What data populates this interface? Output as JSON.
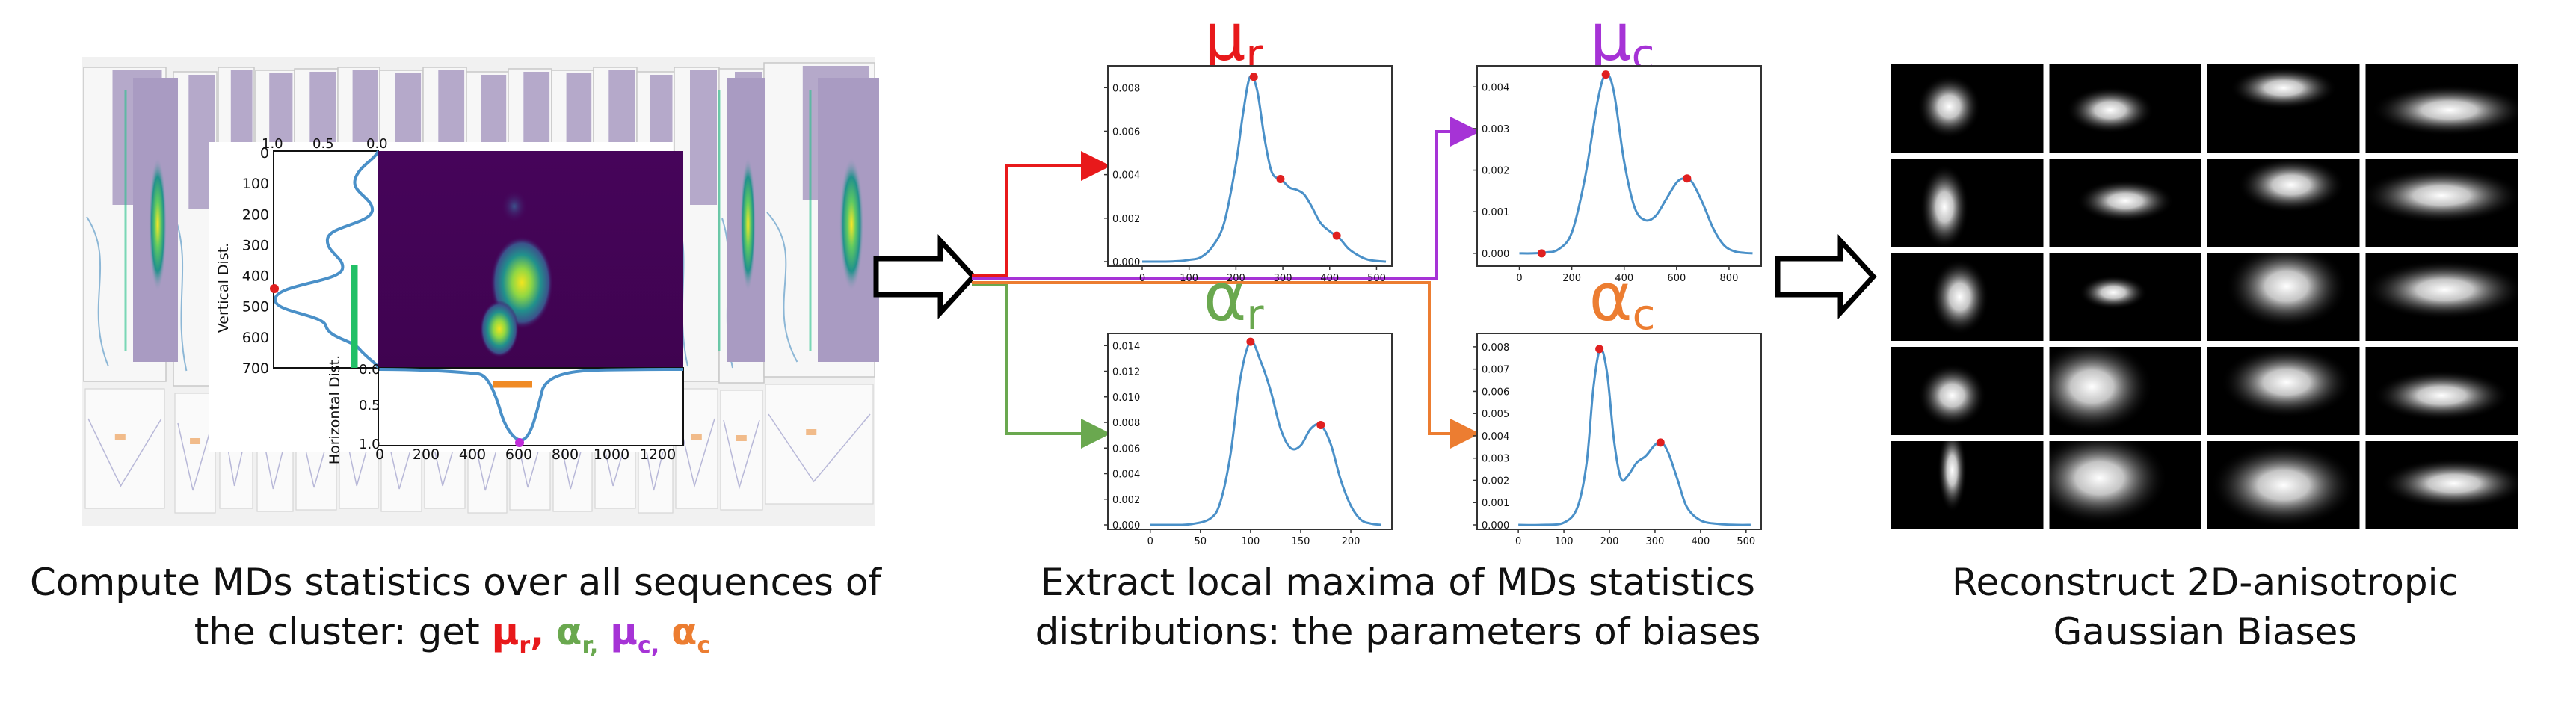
{
  "colors": {
    "mu_r": "#e8191b",
    "alpha_r": "#6aa84f",
    "mu_c": "#a633d6",
    "alpha_c": "#ec7d31",
    "curve": "#4a90c8",
    "heatmap_bg": "#440154",
    "line_green": "#21c066",
    "line_orange": "#f08a24",
    "dot_red": "#e02020",
    "dot_purple": "#c02bd8"
  },
  "panel1": {
    "top_axis_ticks": [
      "1.0",
      "0.5",
      "0.0"
    ],
    "left_axis_label": "Vertical Dist.",
    "left_axis_ticks": [
      "0",
      "100",
      "200",
      "300",
      "400",
      "500",
      "600",
      "700"
    ],
    "bottom_axis_label": "Horizontal Dist.",
    "bottom_left_ticks": [
      "0.0",
      "0.5",
      "1.0"
    ],
    "bottom_axis_ticks": [
      "0",
      "200",
      "400",
      "600",
      "800",
      "1000",
      "1200"
    ]
  },
  "panel2": {
    "plots": [
      {
        "id": "mu_r",
        "symbol": "μ",
        "sub": "r",
        "chart_data": {
          "type": "line",
          "x_ticks": [
            "0",
            "100",
            "200",
            "300",
            "400",
            "500"
          ],
          "y_ticks": [
            "0.000",
            "0.002",
            "0.004",
            "0.006",
            "0.008"
          ],
          "xlim": [
            0,
            520
          ],
          "ylim": [
            0,
            0.0088
          ],
          "x": [
            0,
            25,
            50,
            75,
            100,
            125,
            150,
            175,
            200,
            215,
            230,
            245,
            260,
            275,
            290,
            300,
            315,
            330,
            345,
            360,
            380,
            400,
            420,
            440,
            460,
            480,
            500,
            520
          ],
          "y": [
            0,
            0,
            0,
            2e-05,
            8e-05,
            0.0002,
            0.0007,
            0.0018,
            0.0045,
            0.0068,
            0.0085,
            0.0079,
            0.0058,
            0.0042,
            0.0038,
            0.0037,
            0.0034,
            0.0033,
            0.0031,
            0.0026,
            0.0018,
            0.0014,
            0.0011,
            0.0006,
            0.0003,
            0.0001,
            3e-05,
            0
          ],
          "maxima": [
            [
              238,
              0.0085
            ],
            [
              295,
              0.0038
            ],
            [
              415,
              0.0012
            ]
          ]
        }
      },
      {
        "id": "mu_c",
        "symbol": "μ",
        "sub": "c",
        "chart_data": {
          "type": "line",
          "x_ticks": [
            "0",
            "200",
            "400",
            "600",
            "800"
          ],
          "y_ticks": [
            "0.000",
            "0.001",
            "0.002",
            "0.003",
            "0.004"
          ],
          "xlim": [
            -30,
            900
          ],
          "ylim": [
            -0.0002,
            0.0044
          ],
          "x": [
            0,
            50,
            100,
            150,
            200,
            250,
            300,
            330,
            360,
            400,
            440,
            480,
            520,
            560,
            600,
            630,
            660,
            700,
            740,
            780,
            820,
            860,
            890
          ],
          "y": [
            0,
            0,
            2e-05,
            0.0001,
            0.0005,
            0.0018,
            0.0037,
            0.0043,
            0.0039,
            0.0022,
            0.0011,
            0.0008,
            0.0009,
            0.0013,
            0.0017,
            0.0018,
            0.0017,
            0.0012,
            0.0006,
            0.0002,
            5e-05,
            1e-05,
            0
          ],
          "maxima": [
            [
              330,
              0.0043
            ],
            [
              640,
              0.0018
            ],
            [
              85,
              0.0
            ]
          ]
        }
      },
      {
        "id": "alpha_r",
        "symbol": "α",
        "sub": "r",
        "chart_data": {
          "type": "line",
          "x_ticks": [
            "0",
            "50",
            "100",
            "150",
            "200"
          ],
          "y_ticks": [
            "0.000",
            "0.002",
            "0.004",
            "0.006",
            "0.008",
            "0.010",
            "0.012",
            "0.014"
          ],
          "xlim": [
            -8,
            235
          ],
          "ylim": [
            0,
            0.0146
          ],
          "x": [
            0,
            20,
            40,
            60,
            70,
            80,
            90,
            100,
            110,
            120,
            130,
            140,
            150,
            160,
            170,
            180,
            190,
            200,
            210,
            220,
            230
          ],
          "y": [
            0,
            0,
            5e-05,
            0.0005,
            0.0018,
            0.0055,
            0.0115,
            0.0143,
            0.0128,
            0.0105,
            0.0075,
            0.006,
            0.0062,
            0.0075,
            0.0078,
            0.0063,
            0.0035,
            0.0015,
            0.0004,
            0.0001,
            0
          ],
          "maxima": [
            [
              100,
              0.0143
            ],
            [
              170,
              0.0078
            ]
          ]
        }
      },
      {
        "id": "alpha_c",
        "symbol": "α",
        "sub": "c",
        "chart_data": {
          "type": "line",
          "x_ticks": [
            "0",
            "100",
            "200",
            "300",
            "400",
            "500"
          ],
          "y_ticks": [
            "0.000",
            "0.001",
            "0.002",
            "0.003",
            "0.004",
            "0.005",
            "0.006",
            "0.007",
            "0.008"
          ],
          "xlim": [
            -15,
            520
          ],
          "ylim": [
            0,
            0.0084
          ],
          "x": [
            0,
            50,
            100,
            130,
            150,
            165,
            180,
            195,
            210,
            225,
            240,
            260,
            280,
            300,
            315,
            330,
            350,
            370,
            400,
            440,
            480,
            510
          ],
          "y": [
            0,
            0,
            0.0001,
            0.0008,
            0.0028,
            0.0062,
            0.0079,
            0.0068,
            0.0038,
            0.0021,
            0.0022,
            0.0028,
            0.0031,
            0.0036,
            0.0037,
            0.0032,
            0.002,
            0.0008,
            0.0002,
            4e-05,
            0,
            0
          ],
          "maxima": [
            [
              178,
              0.0079
            ],
            [
              312,
              0.0037
            ]
          ]
        }
      }
    ]
  },
  "captions": {
    "left": {
      "line1": "Compute MDs statistics over all sequences of",
      "line2_prefix": "the cluster: get ",
      "mu_r": "μ",
      "mu_r_sub": "r",
      "alpha_r": "α",
      "alpha_r_sub": "r,",
      "mu_c": "μ",
      "mu_c_sub": "c,",
      "alpha_c": "α",
      "alpha_c_sub": "c",
      "sep": ","
    },
    "middle": {
      "line1": "Extract local maxima of MDs statistics",
      "line2": "distributions: the parameters of biases"
    },
    "right": {
      "line1": "Reconstruct 2D-anisotropic",
      "line2": "Gaussian Biases"
    }
  },
  "gaussians": {
    "grid": {
      "rows": 5,
      "cols": 4
    },
    "cells": [
      [
        [
          0.38,
          0.48,
          0.13,
          0.15
        ],
        [
          0.4,
          0.52,
          0.18,
          0.11
        ],
        [
          0.5,
          0.27,
          0.22,
          0.1
        ],
        [
          0.55,
          0.52,
          0.32,
          0.12
        ]
      ],
      [
        [
          0.35,
          0.55,
          0.1,
          0.2
        ],
        [
          0.5,
          0.48,
          0.2,
          0.1
        ],
        [
          0.55,
          0.3,
          0.22,
          0.13
        ],
        [
          0.5,
          0.42,
          0.33,
          0.13
        ]
      ],
      [
        [
          0.45,
          0.5,
          0.12,
          0.18
        ],
        [
          0.42,
          0.45,
          0.14,
          0.08
        ],
        [
          0.52,
          0.38,
          0.25,
          0.2
        ],
        [
          0.52,
          0.42,
          0.33,
          0.14
        ]
      ],
      [
        [
          0.4,
          0.55,
          0.14,
          0.15
        ],
        [
          0.28,
          0.45,
          0.25,
          0.22
        ],
        [
          0.52,
          0.4,
          0.27,
          0.17
        ],
        [
          0.5,
          0.55,
          0.28,
          0.12
        ]
      ],
      [
        [
          0.4,
          0.33,
          0.06,
          0.2
        ],
        [
          0.33,
          0.42,
          0.28,
          0.22
        ],
        [
          0.5,
          0.5,
          0.3,
          0.2
        ],
        [
          0.58,
          0.48,
          0.3,
          0.12
        ]
      ]
    ]
  }
}
